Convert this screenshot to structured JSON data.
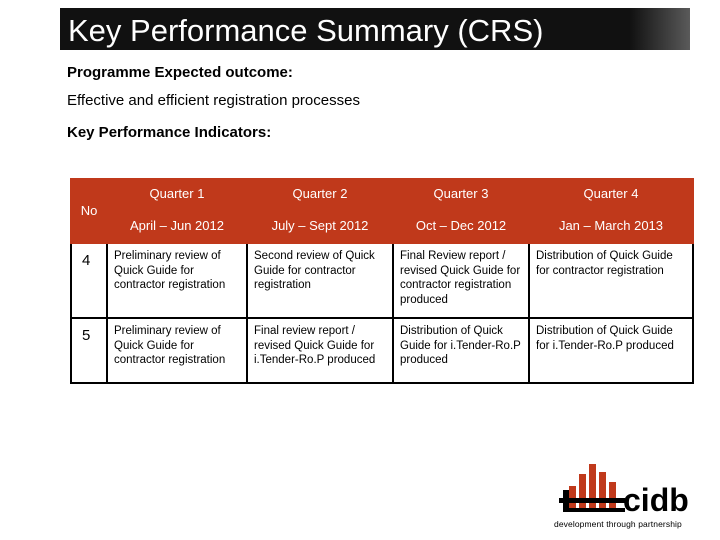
{
  "slide": {
    "title": "Key Performance Summary (CRS)",
    "outcome_heading": "Programme Expected outcome:",
    "outcome_text": "Effective and efficient registration processes",
    "kpi_heading": "Key Performance Indicators:"
  },
  "table": {
    "no_label": "No",
    "quarters": [
      "Quarter 1",
      "Quarter 2",
      "Quarter 3",
      "Quarter 4"
    ],
    "periods": [
      "April – Jun 2012",
      "July – Sept 2012",
      "Oct – Dec 2012",
      "Jan  – March 2013"
    ],
    "rows": [
      {
        "no": "4",
        "cells": [
          "Preliminary review of Quick Guide for contractor registration",
          "Second review of Quick Guide for contractor registration",
          "Final Review report / revised Quick Guide for contractor registration produced",
          "Distribution of Quick Guide for contractor registration"
        ]
      },
      {
        "no": "5",
        "cells": [
          "Preliminary review of Quick Guide for contractor registration",
          "Final review report / revised Quick Guide for i.Tender-Ro.P produced",
          "Distribution of Quick Guide for i.Tender-Ro.P produced",
          "Distribution of Quick Guide for i.Tender-Ro.P produced"
        ]
      }
    ]
  },
  "logo": {
    "word": "cidb",
    "tagline": "development through partnership",
    "accent_color": "#c0391b"
  }
}
